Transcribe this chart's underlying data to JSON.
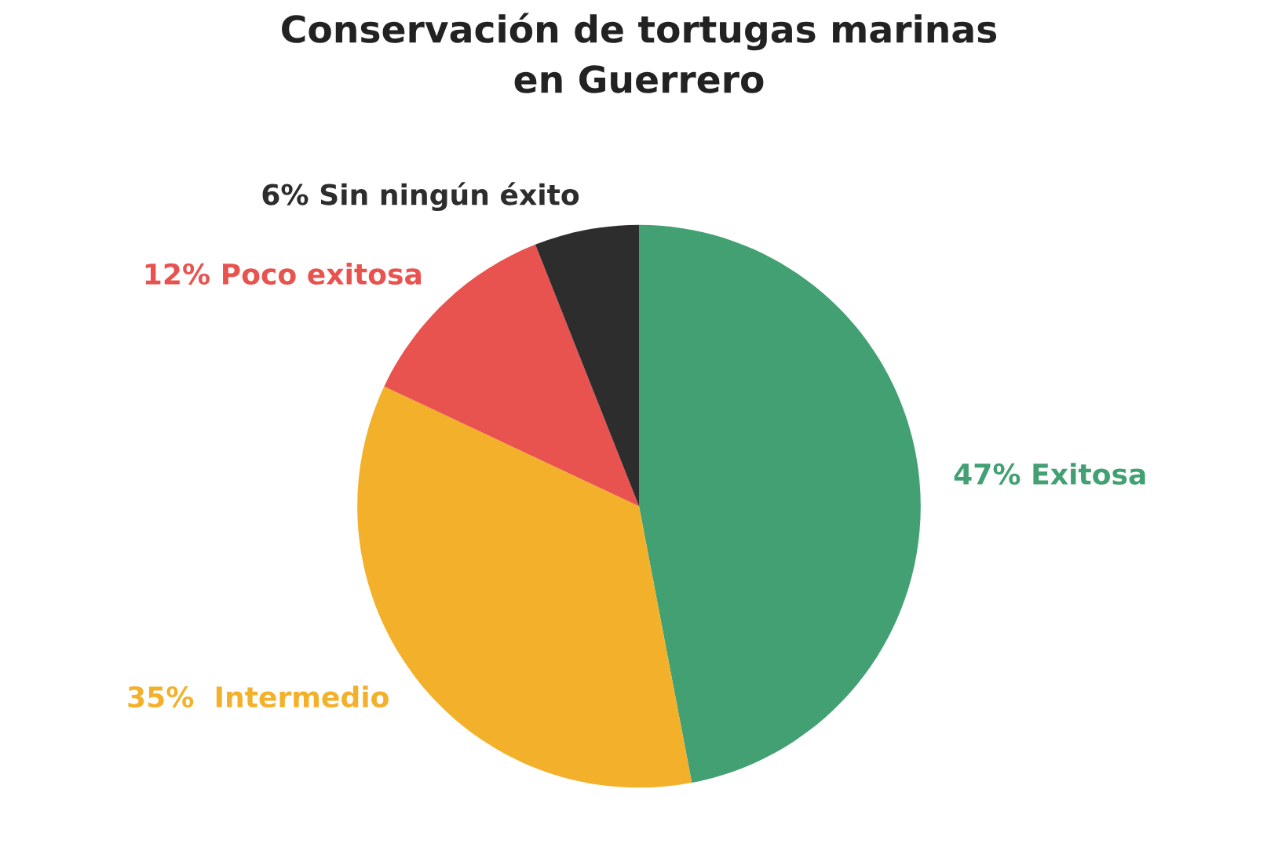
{
  "chart_data": {
    "type": "pie",
    "title": "Conservación de tortugas marinas\nen Guerrero",
    "categories": [
      "47% Exitosa",
      "35%  Intermedio",
      "12% Poco exitosa",
      "6% Sin ningún éxito"
    ],
    "values": [
      47,
      35,
      12,
      6
    ],
    "colors": [
      "#43a073",
      "#f3b12b",
      "#e9534f",
      "#2d2d2d"
    ],
    "legend": false
  }
}
